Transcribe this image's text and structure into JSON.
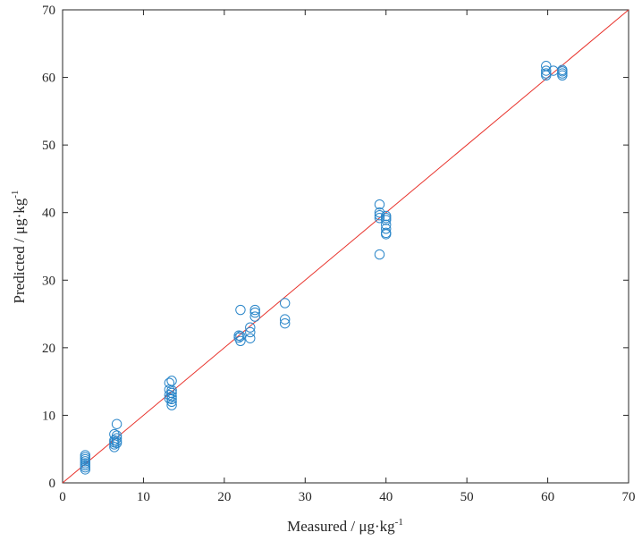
{
  "chart_data": {
    "type": "scatter",
    "title": "",
    "xlabel": "Measured / μg·kg",
    "ylabel": "Predicted / μg·kg",
    "unit_exponent": "-1",
    "xlim": [
      0,
      70
    ],
    "ylim": [
      0,
      70
    ],
    "xticks": [
      0,
      10,
      20,
      30,
      40,
      50,
      60,
      70
    ],
    "yticks": [
      0,
      10,
      20,
      30,
      40,
      50,
      60,
      70
    ],
    "grid": false,
    "reference_line": {
      "x": [
        0,
        70
      ],
      "y": [
        0,
        70
      ],
      "color": "#e8312a"
    },
    "marker_color": "#2a86c9",
    "series": [
      {
        "marker": "circle-open",
        "points": [
          [
            2.8,
            2.0
          ],
          [
            2.8,
            2.3
          ],
          [
            2.8,
            2.6
          ],
          [
            2.8,
            2.9
          ],
          [
            2.8,
            3.2
          ],
          [
            2.8,
            3.5
          ],
          [
            2.8,
            3.8
          ],
          [
            2.8,
            4.1
          ],
          [
            6.4,
            5.3
          ],
          [
            6.4,
            5.7
          ],
          [
            6.4,
            6.0
          ],
          [
            6.4,
            6.3
          ],
          [
            6.4,
            7.2
          ],
          [
            6.7,
            5.9
          ],
          [
            6.7,
            6.2
          ],
          [
            6.7,
            6.6
          ],
          [
            6.7,
            7.0
          ],
          [
            6.7,
            8.7
          ],
          [
            13.2,
            12.5
          ],
          [
            13.2,
            13.0
          ],
          [
            13.2,
            13.8
          ],
          [
            13.2,
            14.8
          ],
          [
            13.5,
            11.5
          ],
          [
            13.5,
            12.0
          ],
          [
            13.5,
            12.4
          ],
          [
            13.5,
            12.8
          ],
          [
            13.5,
            13.3
          ],
          [
            13.5,
            13.7
          ],
          [
            13.5,
            15.1
          ],
          [
            21.8,
            21.5
          ],
          [
            21.8,
            21.8
          ],
          [
            22.0,
            21.0
          ],
          [
            22.0,
            21.7
          ],
          [
            22.0,
            25.6
          ],
          [
            23.2,
            21.4
          ],
          [
            23.2,
            22.3
          ],
          [
            23.2,
            23.0
          ],
          [
            23.8,
            24.6
          ],
          [
            23.8,
            25.2
          ],
          [
            23.8,
            25.6
          ],
          [
            27.5,
            23.6
          ],
          [
            27.5,
            24.2
          ],
          [
            27.5,
            26.6
          ],
          [
            39.2,
            33.8
          ],
          [
            39.2,
            39.2
          ],
          [
            39.2,
            39.6
          ],
          [
            39.2,
            40.0
          ],
          [
            39.2,
            41.2
          ],
          [
            40.0,
            36.8
          ],
          [
            40.0,
            37.0
          ],
          [
            40.0,
            37.6
          ],
          [
            40.0,
            38.2
          ],
          [
            40.0,
            38.9
          ],
          [
            40.0,
            39.2
          ],
          [
            40.0,
            39.5
          ],
          [
            59.8,
            60.3
          ],
          [
            59.8,
            60.6
          ],
          [
            59.8,
            61.0
          ],
          [
            59.8,
            61.7
          ],
          [
            60.7,
            61.0
          ],
          [
            61.8,
            60.3
          ],
          [
            61.8,
            60.6
          ],
          [
            61.8,
            60.9
          ],
          [
            61.8,
            61.1
          ]
        ]
      }
    ]
  }
}
